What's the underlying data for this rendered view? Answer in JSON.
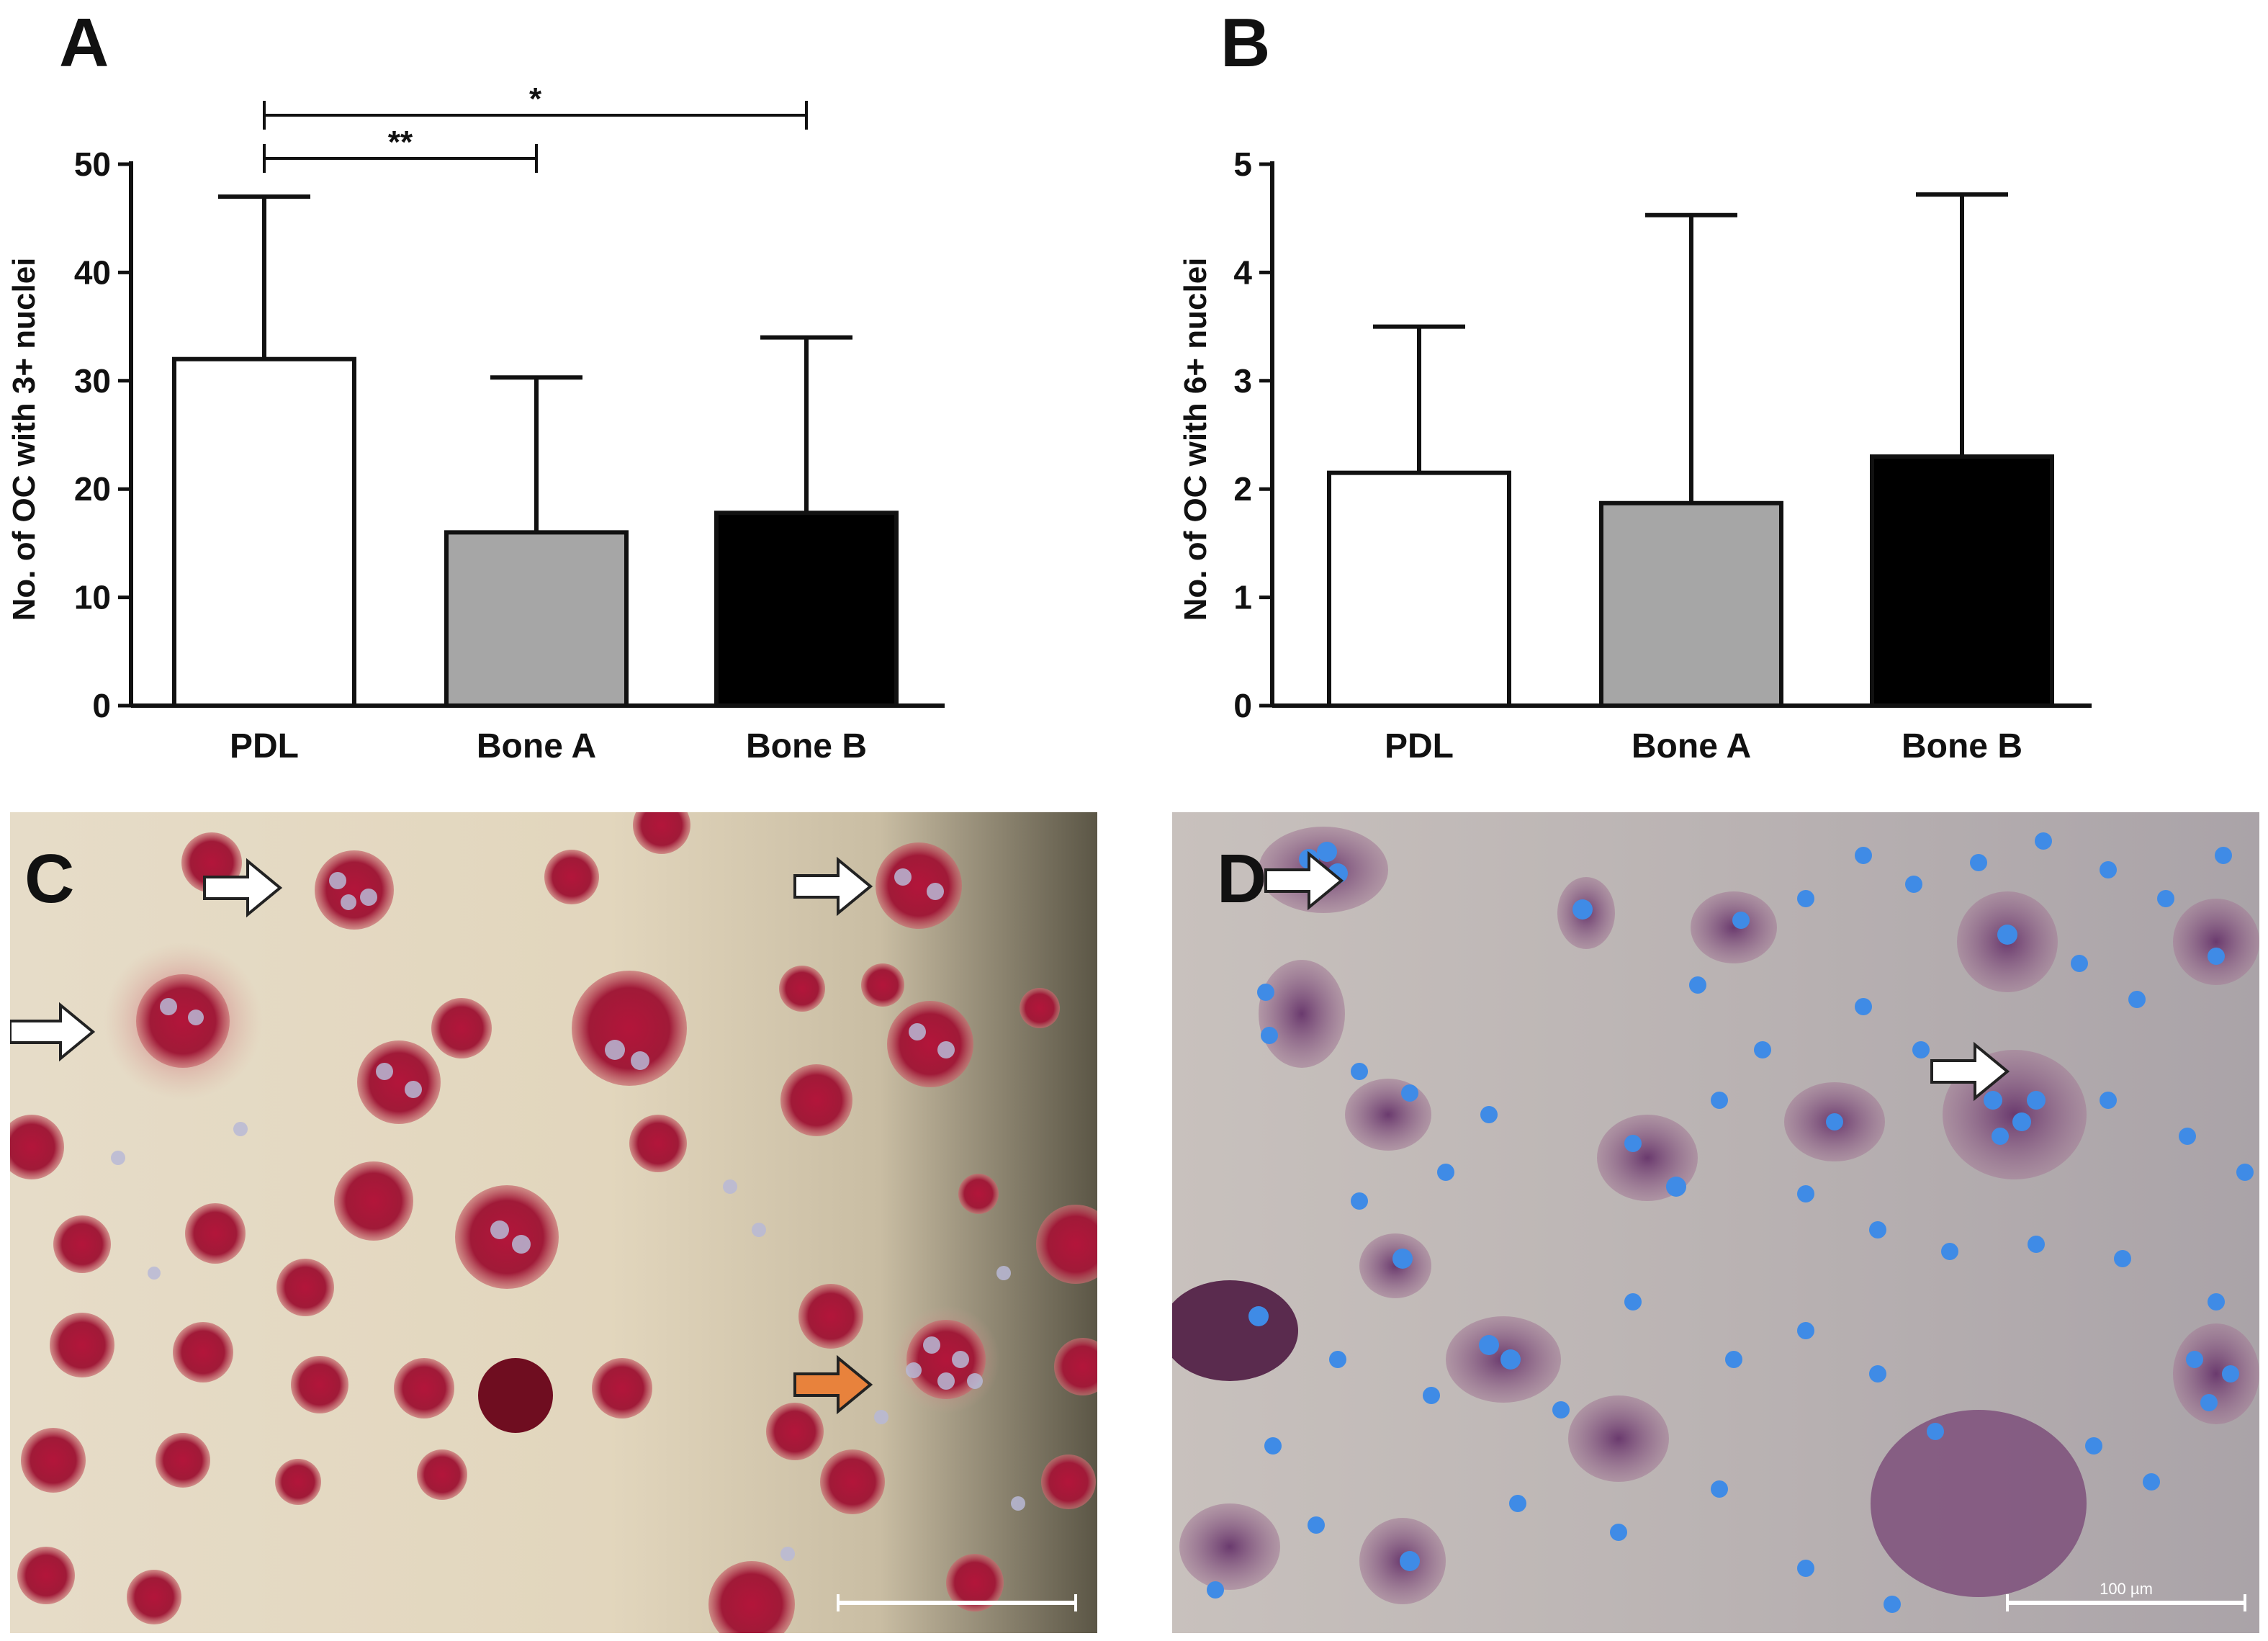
{
  "panels": {
    "A": "A",
    "B": "B",
    "C": "C",
    "D": "D"
  },
  "chart_data": [
    {
      "id": "A",
      "type": "bar",
      "categories": [
        "PDL",
        "Bone A",
        "Bone B"
      ],
      "values": [
        32,
        16,
        17.8
      ],
      "error_upper": [
        47,
        30.3,
        34
      ],
      "bar_colors": [
        "#ffffff",
        "#a6a6a6",
        "#000000"
      ],
      "ylabel": "No. of  OC with 3+ nuclei",
      "ylim": [
        0,
        50
      ],
      "yticks": [
        "0",
        "10",
        "20",
        "30",
        "40",
        "50"
      ],
      "significance": [
        {
          "from": 0,
          "to": 1,
          "label": "**"
        },
        {
          "from": 0,
          "to": 2,
          "label": "*"
        }
      ]
    },
    {
      "id": "B",
      "type": "bar",
      "categories": [
        "PDL",
        "Bone A",
        "Bone B"
      ],
      "values": [
        2.15,
        1.87,
        2.3
      ],
      "error_upper": [
        3.5,
        4.53,
        4.72
      ],
      "bar_colors": [
        "#ffffff",
        "#a6a6a6",
        "#000000"
      ],
      "ylabel": "No. of  OC with 6+ nuclei",
      "ylim": [
        0,
        5
      ],
      "yticks": [
        "0",
        "1",
        "2",
        "3",
        "4",
        "5"
      ]
    }
  ],
  "micrographs": {
    "C": {
      "arrow_colors": [
        "#ffffff",
        "#e8823c"
      ]
    },
    "D": {
      "arrow_colors": [
        "#ffffff"
      ],
      "scale_label": "100 µm"
    }
  }
}
